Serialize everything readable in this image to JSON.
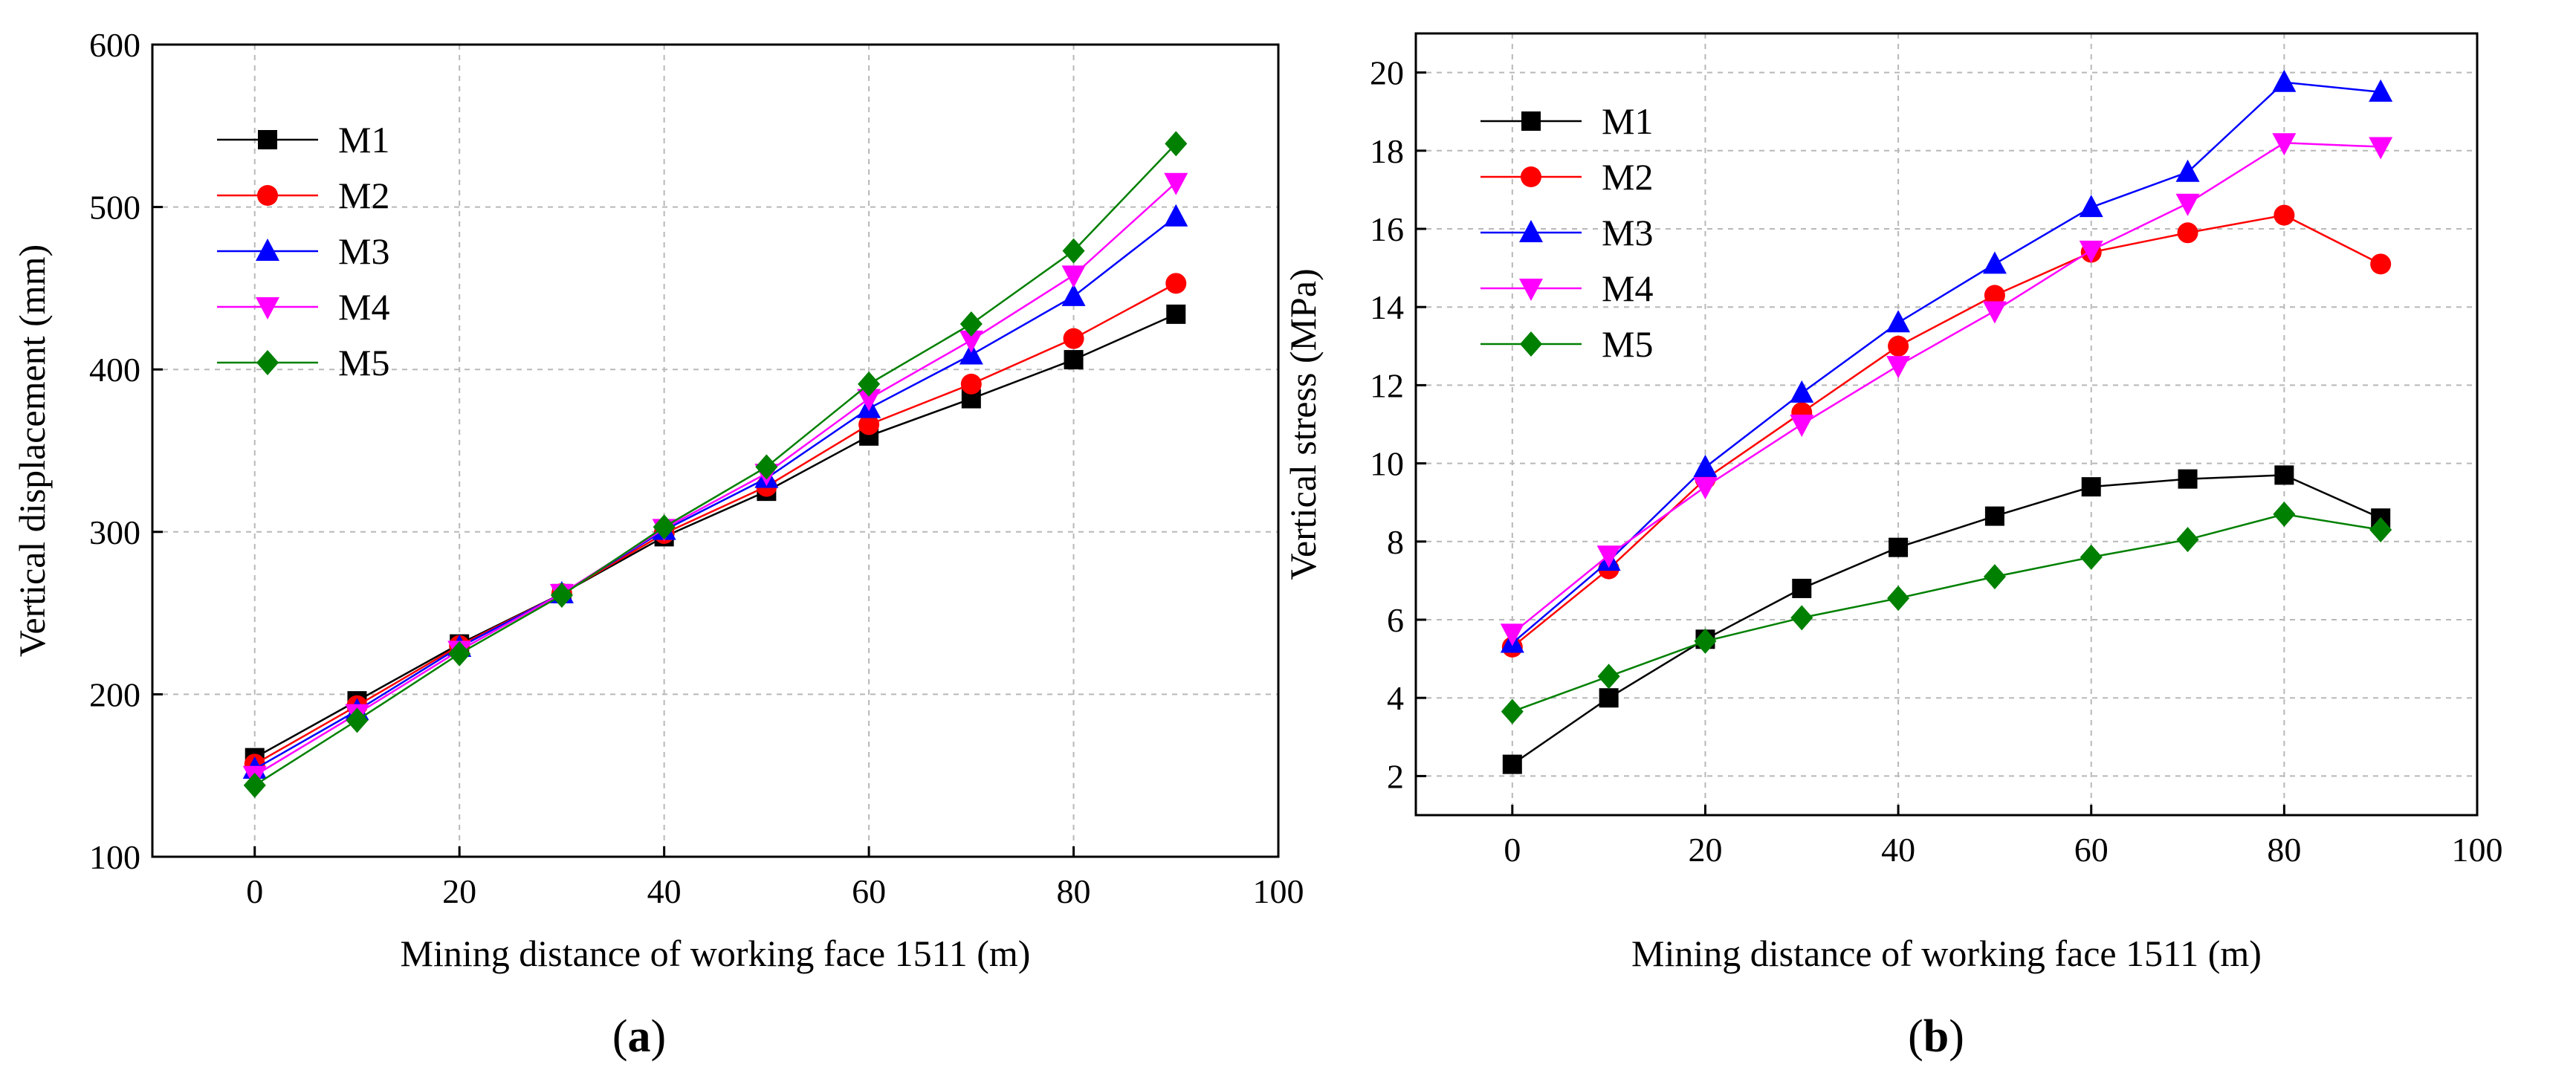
{
  "chart_data": [
    {
      "id": "a",
      "type": "line",
      "caption": "(a)",
      "xlabel": "Mining distance of working face 1511 (m)",
      "ylabel": "Vertical displacement (mm)",
      "xlim": [
        -10,
        100
      ],
      "ylim": [
        100,
        600
      ],
      "xticks": [
        0,
        20,
        40,
        60,
        80,
        100
      ],
      "yticks": [
        100,
        200,
        300,
        400,
        500,
        600
      ],
      "grid": true,
      "legend_position": "top-left",
      "x": [
        0,
        10,
        20,
        30,
        40,
        50,
        60,
        70,
        80,
        90
      ],
      "series": [
        {
          "name": "M1",
          "color": "#000000",
          "marker": "square",
          "values": [
            161,
            196,
            231,
            262,
            297,
            325,
            359,
            382,
            406,
            434
          ]
        },
        {
          "name": "M2",
          "color": "#ff0000",
          "marker": "circle",
          "values": [
            157,
            193,
            230,
            262,
            299,
            328,
            366,
            391,
            419,
            453
          ]
        },
        {
          "name": "M3",
          "color": "#0000ff",
          "marker": "triangle",
          "values": [
            154,
            190,
            229,
            262,
            301,
            333,
            376,
            409,
            445,
            494
          ]
        },
        {
          "name": "M4",
          "color": "#ff00ff",
          "marker": "tri-down",
          "values": [
            150,
            188,
            227,
            262,
            302,
            336,
            382,
            418,
            458,
            515
          ]
        },
        {
          "name": "M5",
          "color": "#008000",
          "marker": "diamond",
          "values": [
            144,
            184,
            225,
            261,
            303,
            340,
            391,
            428,
            473,
            539
          ]
        }
      ]
    },
    {
      "id": "b",
      "type": "line",
      "caption": "(b)",
      "xlabel": "Mining distance of working face 1511 (m)",
      "ylabel": "Vertical stress (MPa)",
      "xlim": [
        -10,
        100
      ],
      "ylim": [
        1,
        21
      ],
      "xticks": [
        0,
        20,
        40,
        60,
        80,
        100
      ],
      "yticks": [
        2,
        4,
        6,
        8,
        10,
        12,
        14,
        16,
        18,
        20
      ],
      "grid": true,
      "legend_position": "top-left",
      "x": [
        0,
        10,
        20,
        30,
        40,
        50,
        60,
        70,
        80,
        90
      ],
      "series": [
        {
          "name": "M1",
          "color": "#000000",
          "marker": "square",
          "values": [
            2.3,
            4.0,
            5.5,
            6.8,
            7.85,
            8.65,
            9.4,
            9.6,
            9.7,
            8.6
          ]
        },
        {
          "name": "M2",
          "color": "#ff0000",
          "marker": "circle",
          "values": [
            5.3,
            7.3,
            9.6,
            11.3,
            13.0,
            14.3,
            15.4,
            15.9,
            16.35,
            15.1
          ]
        },
        {
          "name": "M3",
          "color": "#0000ff",
          "marker": "triangle",
          "values": [
            5.4,
            7.5,
            9.9,
            11.8,
            13.6,
            15.1,
            16.55,
            17.45,
            19.75,
            19.5
          ]
        },
        {
          "name": "M4",
          "color": "#ff00ff",
          "marker": "tri-down",
          "values": [
            5.65,
            7.65,
            9.4,
            11.0,
            12.5,
            13.9,
            15.45,
            16.65,
            18.2,
            18.1
          ]
        },
        {
          "name": "M5",
          "color": "#008000",
          "marker": "diamond",
          "values": [
            3.65,
            4.55,
            5.45,
            6.05,
            6.55,
            7.1,
            7.6,
            8.05,
            8.7,
            8.3
          ]
        }
      ]
    }
  ]
}
